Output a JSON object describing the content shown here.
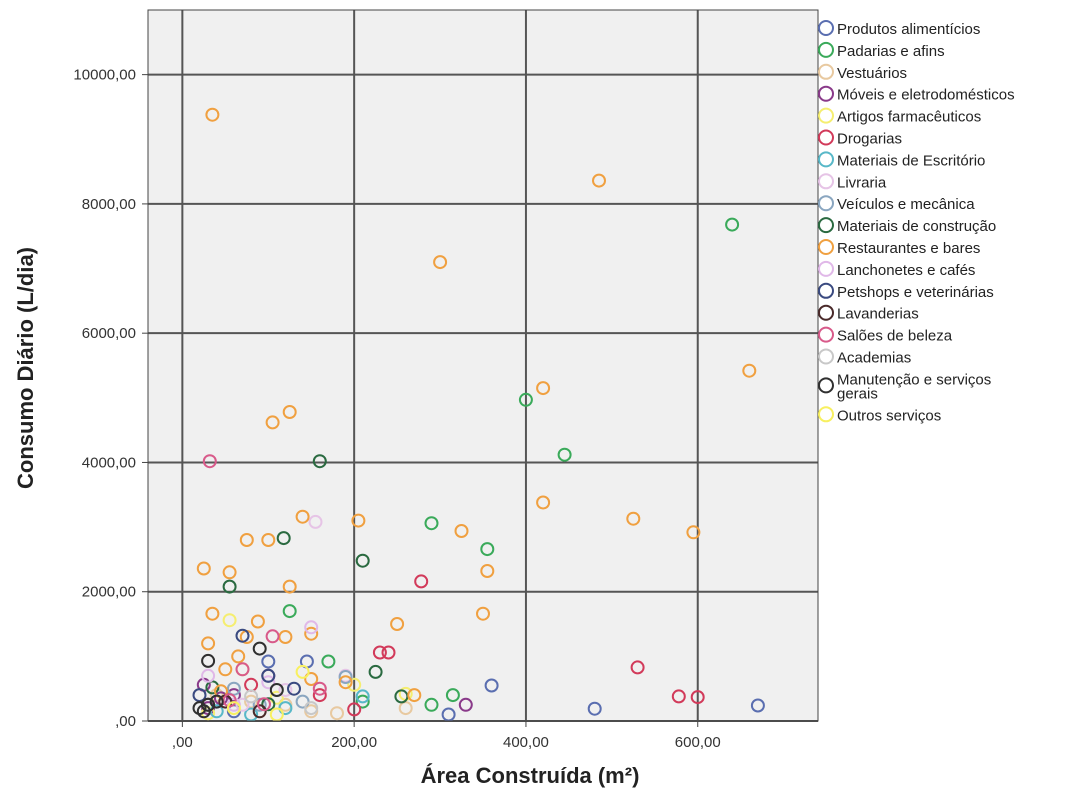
{
  "chart_data": {
    "type": "scatter",
    "title": "",
    "xlabel": "Área Construída (m²)",
    "ylabel": "Consumo Diário (L/dia)",
    "xlim": [
      -40,
      740
    ],
    "ylim": [
      0,
      11000
    ],
    "grid": true,
    "legend_position": "right",
    "x_ticks": [
      {
        "value": 0,
        "label": ",00"
      },
      {
        "value": 200,
        "label": "200,00"
      },
      {
        "value": 400,
        "label": "400,00"
      },
      {
        "value": 600,
        "label": "600,00"
      }
    ],
    "y_ticks": [
      {
        "value": 0,
        "label": ",00"
      },
      {
        "value": 2000,
        "label": "2000,00"
      },
      {
        "value": 4000,
        "label": "4000,00"
      },
      {
        "value": 6000,
        "label": "6000,00"
      },
      {
        "value": 8000,
        "label": "8000,00"
      },
      {
        "value": 10000,
        "label": "10000,00"
      }
    ],
    "series": [
      {
        "name": "Produtos alimentícios",
        "color": "#5a6eb0",
        "points": [
          [
            480,
            190
          ],
          [
            670,
            240
          ],
          [
            360,
            550
          ],
          [
            145,
            920
          ],
          [
            310,
            100
          ],
          [
            100,
            920
          ],
          [
            40,
            300
          ],
          [
            60,
            150
          ]
        ]
      },
      {
        "name": "Padarias e afins",
        "color": "#3aaa5a",
        "points": [
          [
            640,
            7680
          ],
          [
            400,
            4970
          ],
          [
            445,
            4120
          ],
          [
            355,
            2660
          ],
          [
            290,
            3060
          ],
          [
            125,
            1700
          ],
          [
            170,
            920
          ],
          [
            315,
            400
          ],
          [
            210,
            300
          ],
          [
            290,
            250
          ]
        ]
      },
      {
        "name": "Vestuários",
        "color": "#e8c9a0",
        "points": [
          [
            260,
            200
          ],
          [
            80,
            300
          ],
          [
            150,
            150
          ],
          [
            40,
            400
          ],
          [
            120,
            250
          ],
          [
            180,
            120
          ]
        ]
      },
      {
        "name": "Móveis e eletrodomésticos",
        "color": "#8a3a8a",
        "points": [
          [
            25,
            560
          ],
          [
            330,
            250
          ],
          [
            100,
            700
          ],
          [
            60,
            400
          ],
          [
            30,
            200
          ],
          [
            45,
            350
          ]
        ]
      },
      {
        "name": "Artigos farmacêuticos",
        "color": "#f5ee70",
        "points": [
          [
            30,
            120
          ],
          [
            55,
            1560
          ],
          [
            110,
            360
          ],
          [
            200,
            560
          ],
          [
            260,
            420
          ],
          [
            70,
            800
          ]
        ]
      },
      {
        "name": "Drogarias",
        "color": "#d23a5a",
        "points": [
          [
            278,
            2160
          ],
          [
            230,
            1060
          ],
          [
            240,
            1060
          ],
          [
            530,
            830
          ],
          [
            578,
            380
          ],
          [
            600,
            370
          ],
          [
            160,
            400
          ],
          [
            200,
            180
          ],
          [
            80,
            560
          ]
        ]
      },
      {
        "name": "Materiais de Escritório",
        "color": "#58b8c8",
        "points": [
          [
            120,
            200
          ],
          [
            80,
            100
          ],
          [
            210,
            380
          ],
          [
            40,
            150
          ]
        ]
      },
      {
        "name": "Livraria",
        "color": "#e6c4e6",
        "points": [
          [
            155,
            3080
          ],
          [
            70,
            250
          ],
          [
            120,
            480
          ],
          [
            190,
            700
          ]
        ]
      },
      {
        "name": "Veículos e mecânica",
        "color": "#8aa6c0",
        "points": [
          [
            190,
            680
          ],
          [
            90,
            250
          ],
          [
            140,
            300
          ],
          [
            60,
            500
          ]
        ]
      },
      {
        "name": "Materiais de construção",
        "color": "#2a6a40",
        "points": [
          [
            160,
            4020
          ],
          [
            118,
            2830
          ],
          [
            210,
            2480
          ],
          [
            55,
            2080
          ],
          [
            255,
            380
          ],
          [
            225,
            760
          ],
          [
            35,
            520
          ],
          [
            100,
            260
          ]
        ]
      },
      {
        "name": "Restaurantes e bares",
        "color": "#f0a040",
        "points": [
          [
            35,
            9380
          ],
          [
            485,
            8360
          ],
          [
            300,
            7100
          ],
          [
            660,
            5420
          ],
          [
            420,
            5150
          ],
          [
            125,
            4780
          ],
          [
            105,
            4620
          ],
          [
            420,
            3380
          ],
          [
            525,
            3130
          ],
          [
            595,
            2920
          ],
          [
            325,
            2940
          ],
          [
            205,
            3100
          ],
          [
            140,
            3160
          ],
          [
            75,
            2800
          ],
          [
            100,
            2800
          ],
          [
            25,
            2360
          ],
          [
            55,
            2300
          ],
          [
            355,
            2320
          ],
          [
            125,
            2080
          ],
          [
            35,
            1660
          ],
          [
            88,
            1540
          ],
          [
            350,
            1660
          ],
          [
            250,
            1500
          ],
          [
            75,
            1300
          ],
          [
            120,
            1300
          ],
          [
            150,
            1350
          ],
          [
            30,
            1200
          ],
          [
            65,
            1000
          ],
          [
            50,
            800
          ],
          [
            190,
            600
          ],
          [
            270,
            400
          ],
          [
            150,
            650
          ],
          [
            45,
            460
          ]
        ]
      },
      {
        "name": "Lanchonetes e cafés",
        "color": "#e0b8e8",
        "points": [
          [
            150,
            1450
          ],
          [
            30,
            700
          ],
          [
            100,
            600
          ],
          [
            60,
            250
          ]
        ]
      },
      {
        "name": "Petshops e veterinárias",
        "color": "#3a4a80",
        "points": [
          [
            70,
            1320
          ],
          [
            20,
            400
          ],
          [
            100,
            700
          ],
          [
            130,
            500
          ]
        ]
      },
      {
        "name": "Lavanderias",
        "color": "#4a2a2a",
        "points": [
          [
            30,
            250
          ],
          [
            90,
            150
          ],
          [
            50,
            300
          ]
        ]
      },
      {
        "name": "Salões de beleza",
        "color": "#d85a8a",
        "points": [
          [
            32,
            4020
          ],
          [
            105,
            1310
          ],
          [
            70,
            800
          ],
          [
            160,
            500
          ],
          [
            55,
            320
          ],
          [
            95,
            260
          ]
        ]
      },
      {
        "name": "Academias",
        "color": "#c8c8c8",
        "points": [
          [
            80,
            380
          ],
          [
            150,
            200
          ]
        ]
      },
      {
        "name": "Manutenção e serviços gerais",
        "color": "#303030",
        "points": [
          [
            30,
            930
          ],
          [
            90,
            1120
          ],
          [
            110,
            480
          ],
          [
            20,
            200
          ],
          [
            30,
            250
          ],
          [
            40,
            300
          ],
          [
            25,
            150
          ]
        ]
      },
      {
        "name": "Outros serviços",
        "color": "#f8f060",
        "points": [
          [
            140,
            760
          ],
          [
            60,
            200
          ],
          [
            110,
            100
          ]
        ]
      }
    ]
  },
  "legend_labels": [
    {
      "lines": [
        "Produtos alimentícios"
      ]
    },
    {
      "lines": [
        "Padarias e afins"
      ]
    },
    {
      "lines": [
        "Vestuários"
      ]
    },
    {
      "lines": [
        "Móveis e eletrodomésticos"
      ]
    },
    {
      "lines": [
        "Artigos farmacêuticos"
      ]
    },
    {
      "lines": [
        "Drogarias"
      ]
    },
    {
      "lines": [
        "Materiais de Escritório"
      ]
    },
    {
      "lines": [
        "Livraria"
      ]
    },
    {
      "lines": [
        "Veículos e mecânica"
      ]
    },
    {
      "lines": [
        "Materiais de construção"
      ]
    },
    {
      "lines": [
        "Restaurantes e bares"
      ]
    },
    {
      "lines": [
        "Lanchonetes e cafés"
      ]
    },
    {
      "lines": [
        "Petshops e veterinárias"
      ]
    },
    {
      "lines": [
        "Lavanderias"
      ]
    },
    {
      "lines": [
        "Salões de beleza"
      ]
    },
    {
      "lines": [
        "Academias"
      ]
    },
    {
      "lines": [
        "Manutenção e serviços",
        "gerais"
      ]
    },
    {
      "lines": [
        "Outros serviços"
      ]
    }
  ],
  "colors": {
    "plot_background": "#f0f0f0",
    "grid_line": "#555555",
    "frame": "#444444"
  }
}
